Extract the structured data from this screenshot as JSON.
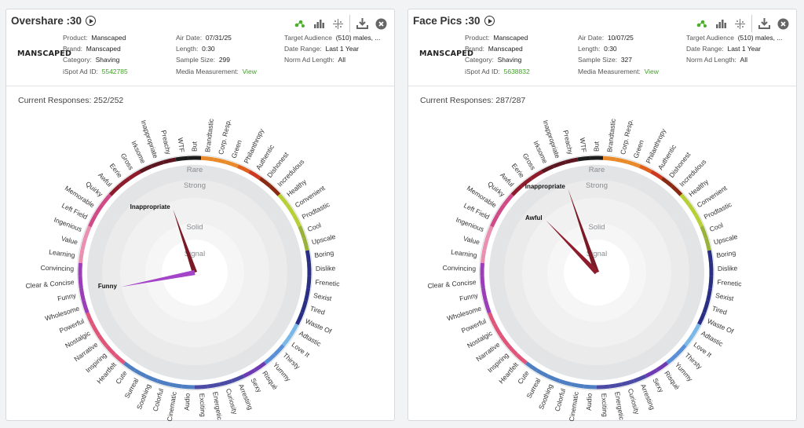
{
  "labels_ring": [
    "But",
    "Brandtastic",
    "Corp. Resp.",
    "Green",
    "Philanthropy",
    "Authentic",
    "Dishonest",
    "Incredulous",
    "Healthy",
    "Convenient",
    "Prodtastic",
    "Cool",
    "Upscale",
    "Boring",
    "Dislike",
    "Frenetic",
    "Sexist",
    "Tired",
    "Waste Of",
    "Adtastic",
    "Love It",
    "Thirsty",
    "Yummy",
    "Risqué",
    "Sexy",
    "Arresting",
    "Curiosity",
    "Energetic",
    "Exciting",
    "Audio",
    "Cinematic",
    "Colorful",
    "Soothing",
    "Surreal",
    "Cute",
    "Heartfelt",
    "Inspiring",
    "Narrative",
    "Nostalgic",
    "Powerful",
    "Wholesome",
    "Funny",
    "Clear & Concise",
    "Convincing",
    "Learning",
    "Value",
    "Ingenious",
    "Left Field",
    "Memorable",
    "Quirky",
    "Awful",
    "Eerie",
    "Gross",
    "Irksome",
    "Inappropriate",
    "Preachy",
    "WTF"
  ],
  "ring_colors": {
    "neutral": "#1c1c1c",
    "brand": "#e98b2a",
    "green_cause": "#e0601e",
    "authentic": "#cc3a22",
    "dishonest": "#8a2a12",
    "healthy": "#b9cf37",
    "cool": "#98b23a",
    "boring": "#2a2f86",
    "adtastic": "#7ab8e8",
    "love": "#5a8fd8",
    "sexy": "#6f3bb3",
    "arresting": "#4b4aa5",
    "cinematic": "#4e7fc3",
    "heartfelt": "#e0567a",
    "funny": "#9b3fb6",
    "value": "#e98fb0",
    "memorable": "#cf4a86",
    "awful": "#8e1c2c",
    "inappropriate": "#5b1620"
  },
  "levels": [
    "Rare",
    "Strong",
    "Solid",
    "Signal"
  ],
  "cards": [
    {
      "title": "Overshare :30",
      "logo": "MANSCAPED",
      "col1": [
        [
          "Product:",
          "Manscaped"
        ],
        [
          "Brand:",
          "Manscaped"
        ],
        [
          "Category:",
          "Shaving"
        ],
        [
          "iSpot Ad ID:",
          "5542785"
        ]
      ],
      "col2": [
        [
          "Air Date:",
          "07/31/25"
        ],
        [
          "Length:",
          "0:30"
        ],
        [
          "Sample Size:",
          "299"
        ],
        [
          "Media Measurement:",
          "View"
        ]
      ],
      "col3": [
        [
          "Target Audience",
          "(510) males, ..."
        ],
        [
          "Date Range:",
          "Last 1 Year"
        ],
        [
          "Norm Ad Length:",
          "All"
        ]
      ],
      "responses": "Current Responses: 252/252",
      "spikes": [
        {
          "label": "Inappropriate",
          "value": 0.62,
          "color": "#7a1a26",
          "tag": "spike-inappropriate"
        },
        {
          "label": "Funny",
          "value": 0.7,
          "color": "#a444c8",
          "tag": "spike-funny"
        }
      ]
    },
    {
      "title": "Face Pics :30",
      "logo": "MANSCAPED",
      "col1": [
        [
          "Product:",
          "Manscaped"
        ],
        [
          "Brand:",
          "Manscaped"
        ],
        [
          "Category:",
          "Shaving"
        ],
        [
          "iSpot Ad ID:",
          "5638832"
        ]
      ],
      "col2": [
        [
          "Air Date:",
          "10/07/25"
        ],
        [
          "Length:",
          "0:30"
        ],
        [
          "Sample Size:",
          "327"
        ],
        [
          "Media Measurement:",
          "View"
        ]
      ],
      "col3": [
        [
          "Target Audience",
          "(510) males, ..."
        ],
        [
          "Date Range:",
          "Last 1 Year"
        ],
        [
          "Norm Ad Length:",
          "All"
        ]
      ],
      "responses": "Current Responses: 287/287",
      "spikes": [
        {
          "label": "Inappropriate",
          "value": 0.82,
          "color": "#7a1a26",
          "tag": "spike-inappropriate"
        },
        {
          "label": "Awful",
          "value": 0.68,
          "color": "#8e1c2c",
          "tag": "spike-awful"
        }
      ]
    }
  ]
}
